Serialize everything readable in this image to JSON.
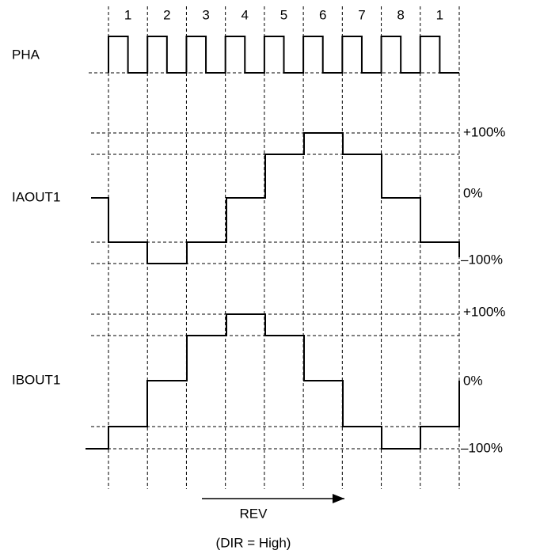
{
  "step_labels": [
    "1",
    "2",
    "3",
    "4",
    "5",
    "6",
    "7",
    "8",
    "1"
  ],
  "signals": [
    {
      "name": "PHA"
    },
    {
      "name": "IAOUT1",
      "levels": [
        "+100%",
        "0%",
        "–100%"
      ]
    },
    {
      "name": "IBOUT1",
      "levels": [
        "+100%",
        "0%",
        "–100%"
      ]
    }
  ],
  "direction": {
    "label": "REV",
    "note": "(DIR = High)"
  }
}
